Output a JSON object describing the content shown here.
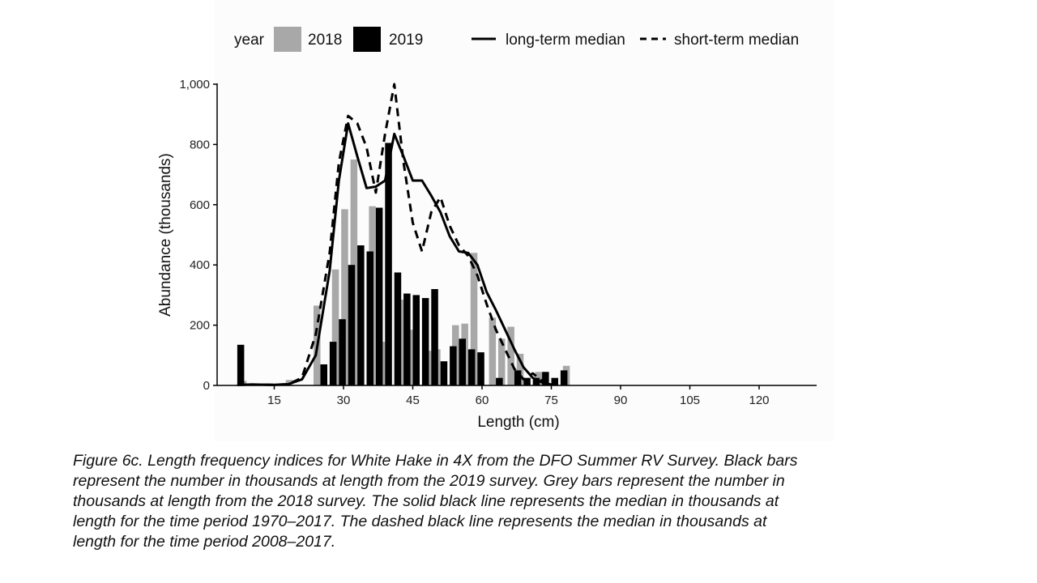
{
  "chart_data": {
    "type": "bar",
    "xlabel": "Length (cm)",
    "ylabel": "Abundance (thousands)",
    "xlim": [
      5,
      130
    ],
    "ylim": [
      0,
      1000
    ],
    "x_ticks": [
      15,
      30,
      45,
      60,
      75,
      90,
      105,
      120
    ],
    "y_ticks": [
      0,
      200,
      400,
      600,
      800,
      1000
    ],
    "y_tick_labels": [
      "0",
      "200",
      "400",
      "600",
      "800",
      "1,000"
    ],
    "legend": {
      "placement": "top",
      "title": "year",
      "bar_entries": [
        "2018",
        "2019"
      ],
      "line_entries": [
        "long-term median",
        "short-term median"
      ]
    },
    "bar_series": [
      {
        "name": "2018",
        "color": "#a8a8a8",
        "points": [
          {
            "x": 7,
            "y": 0
          },
          {
            "x": 9,
            "y": 15
          },
          {
            "x": 19,
            "y": 18
          },
          {
            "x": 25,
            "y": 265
          },
          {
            "x": 27,
            "y": 0
          },
          {
            "x": 29,
            "y": 385
          },
          {
            "x": 31,
            "y": 585
          },
          {
            "x": 33,
            "y": 750
          },
          {
            "x": 35,
            "y": 0
          },
          {
            "x": 37,
            "y": 595
          },
          {
            "x": 39,
            "y": 145
          },
          {
            "x": 41,
            "y": 0
          },
          {
            "x": 43,
            "y": 285
          },
          {
            "x": 45,
            "y": 185
          },
          {
            "x": 47,
            "y": 0
          },
          {
            "x": 49,
            "y": 115
          },
          {
            "x": 51,
            "y": 120
          },
          {
            "x": 53,
            "y": 0
          },
          {
            "x": 55,
            "y": 200
          },
          {
            "x": 57,
            "y": 205
          },
          {
            "x": 59,
            "y": 440
          },
          {
            "x": 61,
            "y": 0
          },
          {
            "x": 63,
            "y": 225
          },
          {
            "x": 65,
            "y": 155
          },
          {
            "x": 67,
            "y": 195
          },
          {
            "x": 69,
            "y": 105
          },
          {
            "x": 71,
            "y": 0
          },
          {
            "x": 73,
            "y": 45
          },
          {
            "x": 75,
            "y": 0
          },
          {
            "x": 77,
            "y": 0
          },
          {
            "x": 79,
            "y": 65
          }
        ]
      },
      {
        "name": "2019",
        "color": "#000000",
        "points": [
          {
            "x": 7,
            "y": 135
          },
          {
            "x": 25,
            "y": 70
          },
          {
            "x": 27,
            "y": 145
          },
          {
            "x": 29,
            "y": 220
          },
          {
            "x": 31,
            "y": 400
          },
          {
            "x": 33,
            "y": 465
          },
          {
            "x": 35,
            "y": 445
          },
          {
            "x": 37,
            "y": 590
          },
          {
            "x": 39,
            "y": 805
          },
          {
            "x": 41,
            "y": 375
          },
          {
            "x": 43,
            "y": 305
          },
          {
            "x": 45,
            "y": 300
          },
          {
            "x": 47,
            "y": 290
          },
          {
            "x": 49,
            "y": 320
          },
          {
            "x": 51,
            "y": 80
          },
          {
            "x": 53,
            "y": 130
          },
          {
            "x": 55,
            "y": 155
          },
          {
            "x": 57,
            "y": 120
          },
          {
            "x": 59,
            "y": 110
          },
          {
            "x": 63,
            "y": 25
          },
          {
            "x": 67,
            "y": 50
          },
          {
            "x": 69,
            "y": 25
          },
          {
            "x": 71,
            "y": 25
          },
          {
            "x": 73,
            "y": 45
          },
          {
            "x": 75,
            "y": 25
          },
          {
            "x": 77,
            "y": 50
          }
        ]
      }
    ],
    "line_series": [
      {
        "name": "long-term median",
        "style": "solid",
        "points": [
          [
            7,
            2
          ],
          [
            10,
            3
          ],
          [
            15,
            2
          ],
          [
            18,
            4
          ],
          [
            21,
            20
          ],
          [
            24,
            100
          ],
          [
            27,
            380
          ],
          [
            29,
            680
          ],
          [
            31,
            870
          ],
          [
            33,
            760
          ],
          [
            35,
            655
          ],
          [
            37,
            660
          ],
          [
            39,
            680
          ],
          [
            41,
            835
          ],
          [
            43,
            760
          ],
          [
            45,
            680
          ],
          [
            47,
            680
          ],
          [
            49,
            630
          ],
          [
            51,
            575
          ],
          [
            53,
            495
          ],
          [
            55,
            445
          ],
          [
            57,
            440
          ],
          [
            59,
            400
          ],
          [
            61,
            310
          ],
          [
            63,
            250
          ],
          [
            65,
            185
          ],
          [
            67,
            120
          ],
          [
            69,
            60
          ],
          [
            71,
            25
          ],
          [
            73,
            10
          ],
          [
            75,
            3
          ]
        ]
      },
      {
        "name": "short-term median",
        "style": "dashed",
        "points": [
          [
            7,
            2
          ],
          [
            10,
            3
          ],
          [
            15,
            2
          ],
          [
            18,
            4
          ],
          [
            21,
            25
          ],
          [
            24,
            170
          ],
          [
            27,
            440
          ],
          [
            29,
            740
          ],
          [
            31,
            895
          ],
          [
            33,
            870
          ],
          [
            35,
            790
          ],
          [
            37,
            640
          ],
          [
            39,
            835
          ],
          [
            41,
            1000
          ],
          [
            43,
            740
          ],
          [
            45,
            540
          ],
          [
            47,
            445
          ],
          [
            49,
            575
          ],
          [
            51,
            625
          ],
          [
            53,
            530
          ],
          [
            55,
            465
          ],
          [
            57,
            430
          ],
          [
            59,
            365
          ],
          [
            61,
            270
          ],
          [
            63,
            185
          ],
          [
            65,
            120
          ],
          [
            67,
            55
          ],
          [
            69,
            20
          ],
          [
            71,
            40
          ],
          [
            73,
            15
          ],
          [
            75,
            3
          ]
        ]
      }
    ]
  },
  "caption": [
    "Figure 6c. Length frequency indices for White Hake in 4X from the DFO Summer RV Survey. Black bars",
    "represent the number in thousands at length from the 2019 survey. Grey bars represent the number in",
    "thousands at length from the 2018 survey. The solid black line represents the median in thousands at",
    "length for the time period 1970–2017. The dashed black line represents the median in thousands at",
    "length for the time period 2008–2017."
  ]
}
